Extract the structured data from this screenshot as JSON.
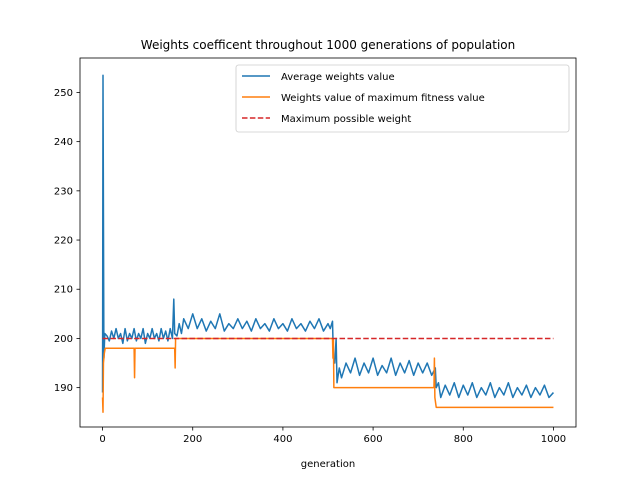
{
  "chart_data": {
    "type": "line",
    "title": "Weights coefficent throughout 1000 generations of population",
    "xlabel": "generation",
    "ylabel": "",
    "xlim": [
      -50,
      1050
    ],
    "ylim": [
      182,
      257
    ],
    "xticks": [
      0,
      200,
      400,
      600,
      800,
      1000
    ],
    "yticks": [
      190,
      200,
      210,
      220,
      230,
      240,
      250
    ],
    "grid": false,
    "legend_position": "upper right",
    "series": [
      {
        "name": "Average weights value",
        "color": "#1f77b4",
        "style": "solid",
        "points": [
          [
            0,
            189
          ],
          [
            1,
            253.5
          ],
          [
            2,
            225
          ],
          [
            3,
            196
          ],
          [
            5,
            201
          ],
          [
            10,
            200.5
          ],
          [
            15,
            199.5
          ],
          [
            20,
            201.5
          ],
          [
            25,
            200
          ],
          [
            30,
            202
          ],
          [
            35,
            200
          ],
          [
            40,
            201
          ],
          [
            45,
            199
          ],
          [
            50,
            202
          ],
          [
            55,
            199.5
          ],
          [
            60,
            201
          ],
          [
            65,
            200
          ],
          [
            70,
            202
          ],
          [
            75,
            199.5
          ],
          [
            80,
            201
          ],
          [
            85,
            200
          ],
          [
            90,
            202
          ],
          [
            95,
            199
          ],
          [
            100,
            201
          ],
          [
            105,
            200
          ],
          [
            110,
            202
          ],
          [
            115,
            200
          ],
          [
            120,
            201
          ],
          [
            125,
            199.5
          ],
          [
            130,
            202
          ],
          [
            135,
            200
          ],
          [
            140,
            201.5
          ],
          [
            145,
            199.5
          ],
          [
            150,
            202
          ],
          [
            155,
            200
          ],
          [
            158,
            208
          ],
          [
            160,
            201
          ],
          [
            165,
            200.5
          ],
          [
            170,
            203
          ],
          [
            175,
            201
          ],
          [
            180,
            204
          ],
          [
            190,
            202
          ],
          [
            200,
            205
          ],
          [
            210,
            202
          ],
          [
            220,
            204
          ],
          [
            230,
            201.5
          ],
          [
            240,
            203.5
          ],
          [
            250,
            202
          ],
          [
            260,
            205
          ],
          [
            270,
            201.5
          ],
          [
            280,
            203
          ],
          [
            290,
            202
          ],
          [
            300,
            204
          ],
          [
            310,
            202
          ],
          [
            320,
            203.5
          ],
          [
            330,
            201.5
          ],
          [
            340,
            204
          ],
          [
            350,
            202
          ],
          [
            360,
            203
          ],
          [
            370,
            201.5
          ],
          [
            380,
            204
          ],
          [
            390,
            202
          ],
          [
            400,
            203
          ],
          [
            410,
            201.5
          ],
          [
            420,
            204
          ],
          [
            430,
            202
          ],
          [
            440,
            203
          ],
          [
            450,
            201.5
          ],
          [
            460,
            203.5
          ],
          [
            470,
            202
          ],
          [
            480,
            204
          ],
          [
            490,
            201.5
          ],
          [
            500,
            203
          ],
          [
            505,
            202
          ],
          [
            510,
            203.5
          ],
          [
            512,
            196
          ],
          [
            515,
            195
          ],
          [
            518,
            200
          ],
          [
            520,
            191
          ],
          [
            525,
            194
          ],
          [
            530,
            192
          ],
          [
            540,
            195
          ],
          [
            550,
            193
          ],
          [
            560,
            196
          ],
          [
            570,
            192.5
          ],
          [
            580,
            195
          ],
          [
            590,
            193
          ],
          [
            600,
            196
          ],
          [
            610,
            192.5
          ],
          [
            620,
            194.5
          ],
          [
            630,
            193
          ],
          [
            640,
            196
          ],
          [
            650,
            192.5
          ],
          [
            660,
            195
          ],
          [
            670,
            193
          ],
          [
            680,
            195.5
          ],
          [
            690,
            192.5
          ],
          [
            700,
            195
          ],
          [
            710,
            193
          ],
          [
            720,
            195
          ],
          [
            730,
            192.5
          ],
          [
            738,
            194
          ],
          [
            740,
            190
          ],
          [
            745,
            191
          ],
          [
            750,
            188
          ],
          [
            760,
            190.5
          ],
          [
            770,
            188.5
          ],
          [
            780,
            191
          ],
          [
            790,
            188
          ],
          [
            800,
            190.5
          ],
          [
            810,
            188.5
          ],
          [
            820,
            191
          ],
          [
            830,
            188
          ],
          [
            840,
            190
          ],
          [
            850,
            188.5
          ],
          [
            860,
            191
          ],
          [
            870,
            188
          ],
          [
            880,
            190
          ],
          [
            890,
            188.5
          ],
          [
            900,
            191
          ],
          [
            910,
            188
          ],
          [
            920,
            190
          ],
          [
            930,
            188.5
          ],
          [
            940,
            190.5
          ],
          [
            950,
            188
          ],
          [
            960,
            190
          ],
          [
            970,
            188.5
          ],
          [
            980,
            190.5
          ],
          [
            990,
            188
          ],
          [
            1000,
            189
          ]
        ]
      },
      {
        "name": "Weights value of maximum fitness value",
        "color": "#ff7f0e",
        "style": "solid",
        "points": [
          [
            0,
            188
          ],
          [
            1,
            185
          ],
          [
            2,
            195
          ],
          [
            4,
            197
          ],
          [
            6,
            198
          ],
          [
            70,
            198
          ],
          [
            71,
            192
          ],
          [
            72,
            198
          ],
          [
            160,
            198
          ],
          [
            161,
            194
          ],
          [
            162,
            200
          ],
          [
            510,
            200
          ],
          [
            511,
            196
          ],
          [
            512,
            200
          ],
          [
            513,
            190
          ],
          [
            735,
            190
          ],
          [
            736,
            196
          ],
          [
            737,
            188
          ],
          [
            740,
            186
          ],
          [
            1000,
            186
          ]
        ]
      },
      {
        "name": "Maximum possible weight",
        "color": "#d62728",
        "style": "dashed",
        "points": [
          [
            0,
            200
          ],
          [
            1000,
            200
          ]
        ]
      }
    ]
  }
}
